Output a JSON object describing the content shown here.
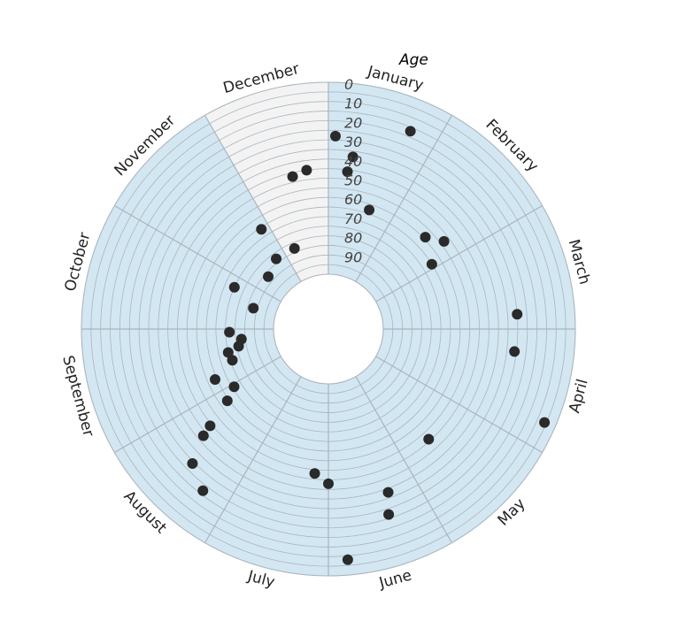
{
  "chart_data": {
    "type": "scatter",
    "subtype": "polar",
    "angular_axis": {
      "categories": [
        "January",
        "February",
        "March",
        "April",
        "May",
        "June",
        "July",
        "August",
        "September",
        "October",
        "November",
        "December"
      ],
      "direction": "clockwise",
      "start": "top"
    },
    "radial_axis": {
      "title": "Age",
      "ticks": [
        0,
        10,
        20,
        30,
        40,
        50,
        60,
        70,
        80,
        90
      ],
      "range": [
        0,
        100
      ],
      "direction": "inward",
      "grid_step": 5
    },
    "highlight_sector": "December",
    "colors": {
      "sector": "#d3e7f2",
      "highlight": "#f3f3f3",
      "grid": "#aab4bc",
      "point": "#2a2a2a"
    },
    "points": [
      {
        "month": 0.07,
        "age": 28
      },
      {
        "month": 0.23,
        "age": 46
      },
      {
        "month": 0.27,
        "age": 38
      },
      {
        "month": 0.63,
        "age": 63
      },
      {
        "month": 0.75,
        "age": 17
      },
      {
        "month": 1.55,
        "age": 59
      },
      {
        "month": 1.76,
        "age": 53
      },
      {
        "month": 1.93,
        "age": 65
      },
      {
        "month": 2.85,
        "age": 30
      },
      {
        "month": 3.23,
        "age": 31
      },
      {
        "month": 3.78,
        "age": 6
      },
      {
        "month": 4.59,
        "age": 51
      },
      {
        "month": 5.33,
        "age": 38
      },
      {
        "month": 5.4,
        "age": 27
      },
      {
        "month": 5.84,
        "age": 8
      },
      {
        "month": 6.0,
        "age": 48
      },
      {
        "month": 6.18,
        "age": 53
      },
      {
        "month": 7.26,
        "age": 22
      },
      {
        "month": 7.51,
        "age": 29
      },
      {
        "month": 7.65,
        "age": 43
      },
      {
        "month": 7.69,
        "age": 49
      },
      {
        "month": 7.82,
        "age": 64
      },
      {
        "month": 7.95,
        "age": 71
      },
      {
        "month": 8.2,
        "age": 64
      },
      {
        "month": 8.4,
        "age": 76
      },
      {
        "month": 8.56,
        "age": 75
      },
      {
        "month": 8.64,
        "age": 81
      },
      {
        "month": 8.78,
        "age": 83
      },
      {
        "month": 8.94,
        "age": 77
      },
      {
        "month": 9.52,
        "age": 88
      },
      {
        "month": 9.8,
        "age": 75
      },
      {
        "month": 10.37,
        "age": 87
      },
      {
        "month": 10.78,
        "age": 83
      },
      {
        "month": 10.87,
        "age": 66
      },
      {
        "month": 11.24,
        "age": 83
      },
      {
        "month": 11.56,
        "age": 47
      },
      {
        "month": 11.74,
        "age": 45
      }
    ]
  }
}
